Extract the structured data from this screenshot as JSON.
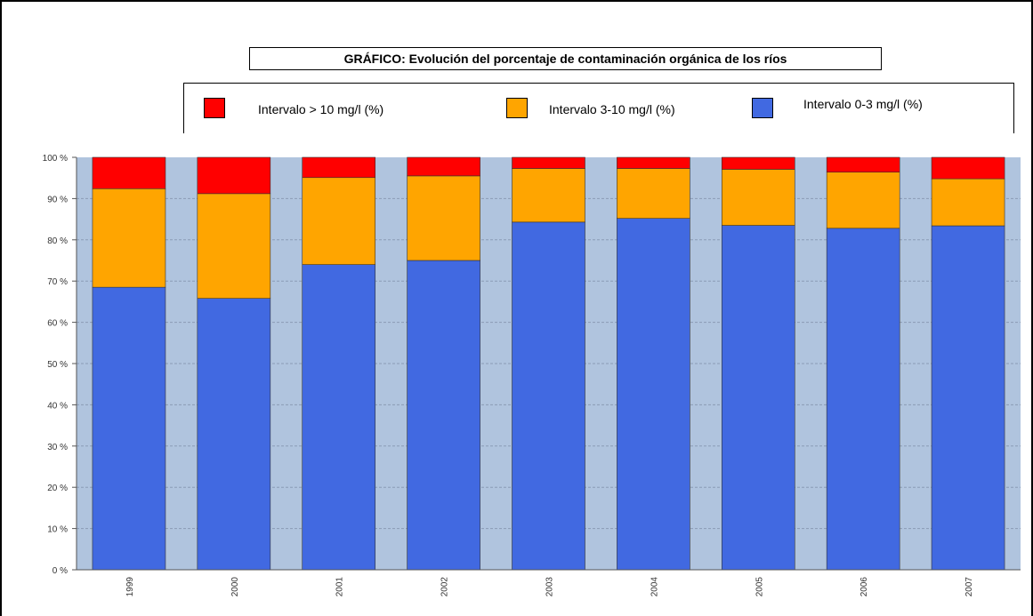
{
  "chart_data": {
    "type": "bar",
    "stacked": true,
    "title": "GRÁFICO: Evolución del porcentaje de contaminación orgánica de los ríos",
    "categories": [
      "1999",
      "2000",
      "2001",
      "2002",
      "2003",
      "2004",
      "2005",
      "2006",
      "2007"
    ],
    "series": [
      {
        "name": "Intervalo 0-3 mg/l (%)",
        "color": "#4169E1",
        "values": [
          68.5,
          65.8,
          74.0,
          75.0,
          84.3,
          85.2,
          83.5,
          82.8,
          83.4
        ]
      },
      {
        "name": "Intervalo 3-10 mg/l (%)",
        "color": "#FFA500",
        "values": [
          23.9,
          25.4,
          21.1,
          20.5,
          13.0,
          12.1,
          13.6,
          13.6,
          11.4
        ]
      },
      {
        "name": "Intervalo > 10 mg/l (%)",
        "color": "#FF0000",
        "values": [
          7.6,
          8.8,
          4.9,
          4.5,
          2.7,
          2.7,
          2.9,
          3.6,
          5.2
        ]
      }
    ],
    "legend_order": [
      2,
      1,
      0
    ],
    "ylim": [
      0,
      100
    ],
    "yticks": [
      0,
      10,
      20,
      30,
      40,
      50,
      60,
      70,
      80,
      90,
      100
    ],
    "ytick_suffix": " %",
    "xlabel": "",
    "ylabel": "",
    "grid": true,
    "gap_color": "#B0C4DE",
    "legend_position": "top"
  }
}
